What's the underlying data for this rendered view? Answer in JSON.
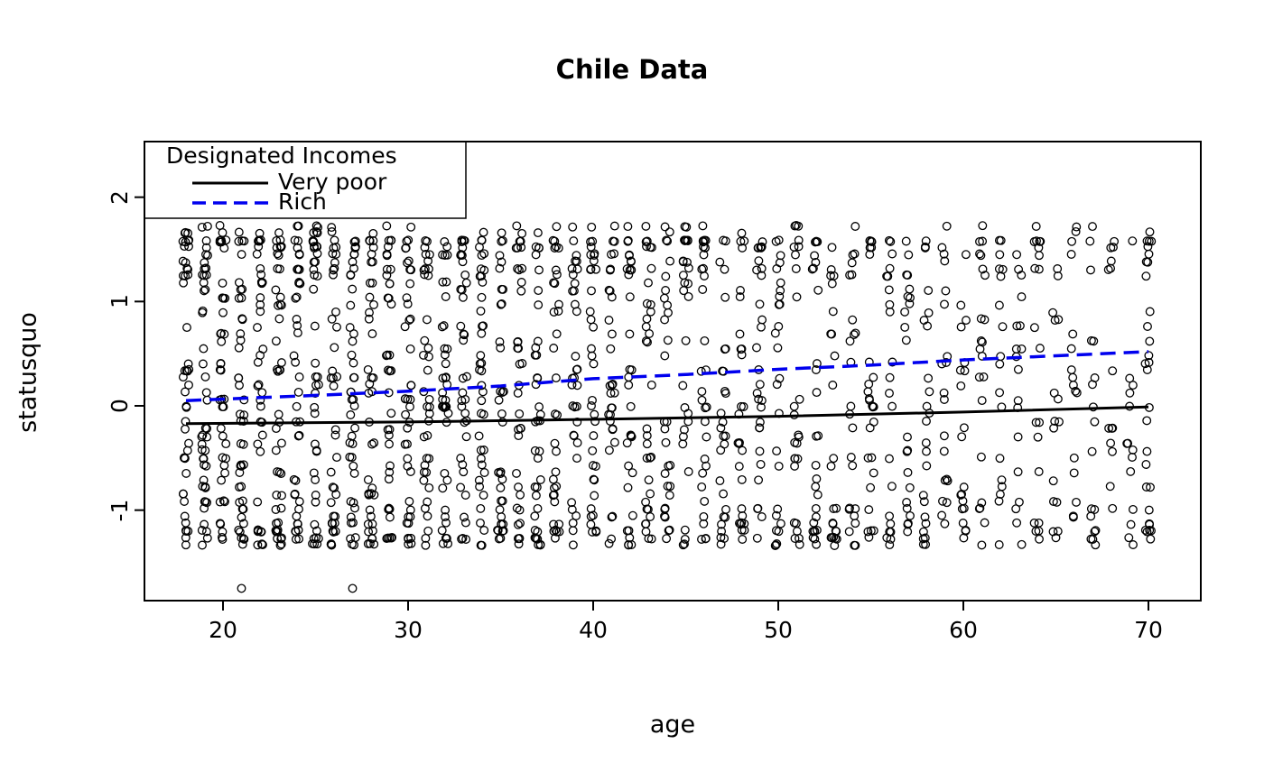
{
  "title": "Chile Data",
  "chart_data": {
    "type": "scatter",
    "title": "Chile Data",
    "xlabel": "age",
    "ylabel": "statusquo",
    "xlim": [
      15.8,
      72.8
    ],
    "ylim": [
      -1.87,
      2.53
    ],
    "x_ticks": [
      20,
      30,
      40,
      50,
      60,
      70
    ],
    "x_tick_labels": [
      "20",
      "30",
      "40",
      "50",
      "60",
      "70"
    ],
    "y_ticks": [
      -1,
      0,
      1,
      2
    ],
    "y_tick_labels": [
      "-1",
      "0",
      "1",
      "2"
    ],
    "grid": false,
    "background": "#ffffff",
    "point_style": {
      "marker": "open-circle",
      "color": "#000000",
      "radius": 4.3
    },
    "scatter": {
      "description": "Dense columns of open circles at each integer age 18-70, statusquo values clustered in horizontal bands between -1.35 and 1.72, densest near 1.58 and -1.2 to -1.3",
      "age_start": 18,
      "counts_per_age": [
        46,
        48,
        42,
        44,
        42,
        46,
        42,
        44,
        40,
        44,
        42,
        40,
        42,
        38,
        40,
        38,
        40,
        36,
        36,
        38,
        34,
        34,
        36,
        32,
        32,
        34,
        30,
        30,
        32,
        28,
        28,
        30,
        26,
        26,
        28,
        24,
        24,
        26,
        22,
        22,
        24,
        20,
        20,
        22,
        18,
        18,
        20,
        16,
        16,
        18,
        14,
        14,
        30
      ],
      "y_bands": [
        [
          1.72,
          0.8
        ],
        [
          1.66,
          0.5
        ],
        [
          1.58,
          3.5
        ],
        [
          1.52,
          2.5
        ],
        [
          1.45,
          1.5
        ],
        [
          1.38,
          1.2
        ],
        [
          1.31,
          1.8
        ],
        [
          1.25,
          1.2
        ],
        [
          1.18,
          1.0
        ],
        [
          1.11,
          1.2
        ],
        [
          1.04,
          1.2
        ],
        [
          0.97,
          0.9
        ],
        [
          0.9,
          0.8
        ],
        [
          0.83,
          0.8
        ],
        [
          0.76,
          0.8
        ],
        [
          0.69,
          0.8
        ],
        [
          0.62,
          0.8
        ],
        [
          0.55,
          0.8
        ],
        [
          0.48,
          0.8
        ],
        [
          0.41,
          0.8
        ],
        [
          0.34,
          0.9
        ],
        [
          0.27,
          1.0
        ],
        [
          0.2,
          1.0
        ],
        [
          0.13,
          1.0
        ],
        [
          0.06,
          1.0
        ],
        [
          -0.01,
          1.0
        ],
        [
          -0.08,
          1.0
        ],
        [
          -0.15,
          1.0
        ],
        [
          -0.22,
          1.0
        ],
        [
          -0.29,
          0.9
        ],
        [
          -0.36,
          0.9
        ],
        [
          -0.43,
          0.8
        ],
        [
          -0.5,
          0.8
        ],
        [
          -0.57,
          0.8
        ],
        [
          -0.64,
          0.8
        ],
        [
          -0.71,
          0.8
        ],
        [
          -0.78,
          0.8
        ],
        [
          -0.85,
          0.9
        ],
        [
          -0.92,
          1.0
        ],
        [
          -0.99,
          1.4
        ],
        [
          -1.06,
          1.6
        ],
        [
          -1.13,
          2.0
        ],
        [
          -1.2,
          2.4
        ],
        [
          -1.27,
          2.6
        ],
        [
          -1.33,
          1.8
        ]
      ],
      "outliers": [
        {
          "x": 21,
          "y": -1.75
        },
        {
          "x": 27,
          "y": -1.75
        }
      ],
      "seed": 20240613
    },
    "series": [
      {
        "name": "Very poor",
        "type": "line",
        "style": "solid",
        "color": "#000000",
        "width": 3,
        "x": [
          18,
          30,
          40,
          50,
          60,
          70
        ],
        "y": [
          -0.17,
          -0.155,
          -0.13,
          -0.1,
          -0.06,
          -0.01
        ]
      },
      {
        "name": "Rich",
        "type": "line",
        "style": "dashed",
        "color": "#0000ee",
        "width": 3.5,
        "x": [
          18,
          25,
          30,
          35,
          40,
          45,
          50,
          55,
          60,
          65,
          70
        ],
        "y": [
          0.05,
          0.1,
          0.14,
          0.19,
          0.26,
          0.3,
          0.35,
          0.39,
          0.44,
          0.48,
          0.52
        ]
      }
    ],
    "legend": {
      "title": "Designated Incomes",
      "position": "top-left",
      "entries": [
        {
          "label": "Very poor",
          "line": "solid",
          "color": "#000000"
        },
        {
          "label": "Rich",
          "line": "dashed",
          "color": "#0000ee"
        }
      ]
    }
  }
}
